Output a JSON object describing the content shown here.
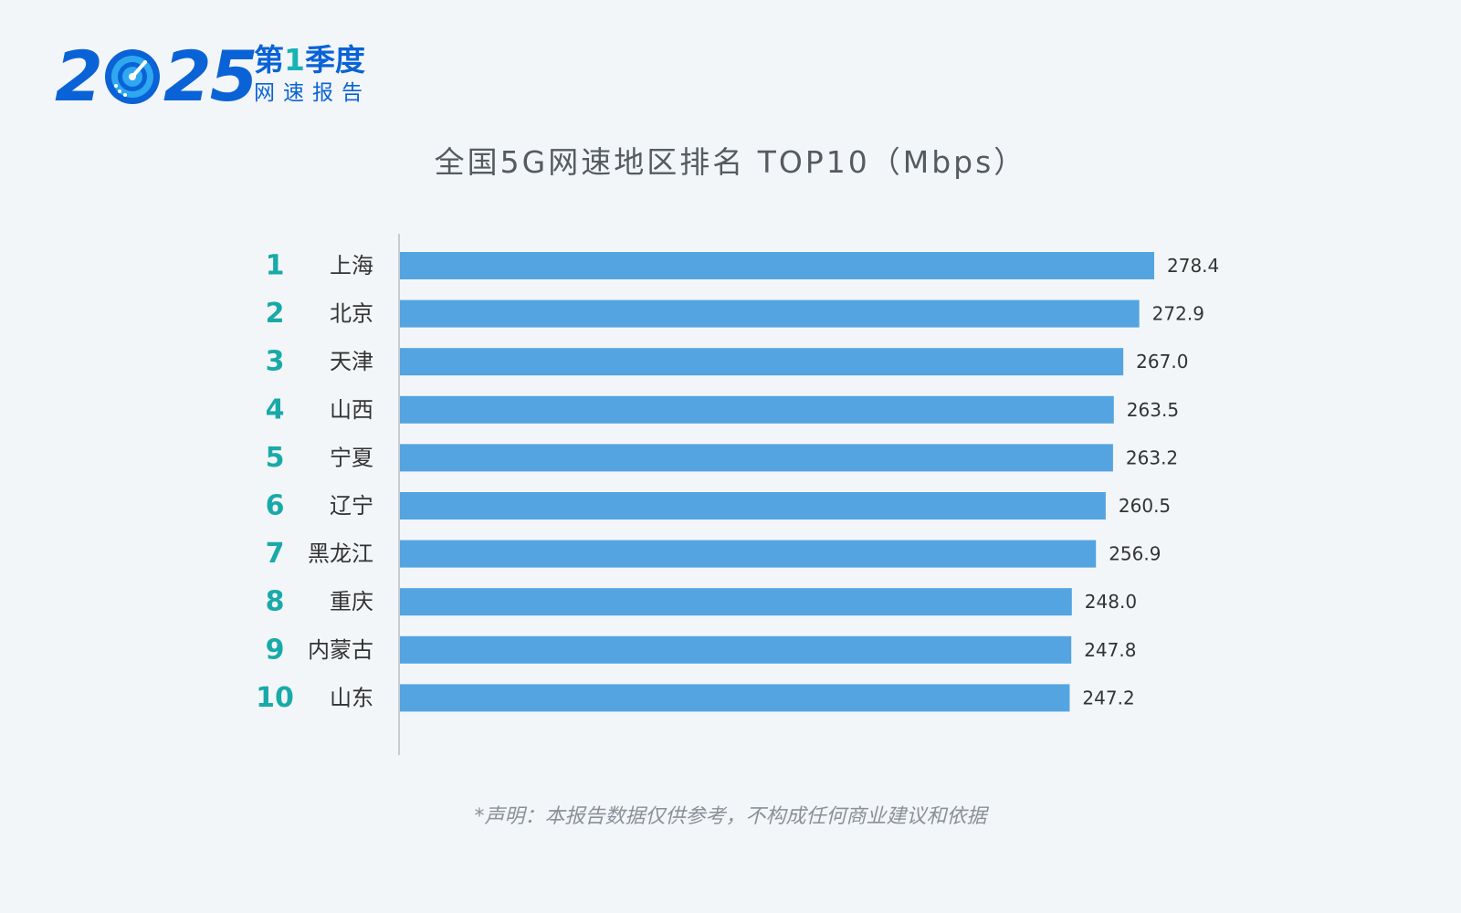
{
  "logo": {
    "year_digits": [
      "2",
      "0",
      "2",
      "5"
    ],
    "quarter_prefix": "第",
    "quarter_num": "1",
    "quarter_suffix": "季度",
    "report": "网速报告",
    "gauge_icon": "speedometer-icon",
    "colors": {
      "primary": "#0a63d6",
      "accent": "#19b3b3",
      "gauge_light": "#2fa8f0"
    }
  },
  "chart_data": {
    "type": "bar",
    "orientation": "horizontal",
    "title": "全国5G网速地区排名 TOP10（Mbps）",
    "ranks": [
      "1",
      "2",
      "3",
      "4",
      "5",
      "6",
      "7",
      "8",
      "9",
      "10"
    ],
    "categories": [
      "上海",
      "北京",
      "天津",
      "山西",
      "宁夏",
      "辽宁",
      "黑龙江",
      "重庆",
      "内蒙古",
      "山东"
    ],
    "values": [
      278.4,
      272.9,
      267.0,
      263.5,
      263.2,
      260.5,
      256.9,
      248.0,
      247.8,
      247.2
    ],
    "value_labels": [
      "278.4",
      "272.9",
      "267.0",
      "263.5",
      "263.2",
      "260.5",
      "256.9",
      "248.0",
      "247.8",
      "247.2"
    ],
    "xlim": [
      0,
      278.4
    ],
    "grid": false,
    "legend": "none",
    "colors": {
      "bar": "#53a4e1",
      "rank": "#19aaa8",
      "axis": "#c8cdd2"
    }
  },
  "footer": {
    "disclaimer": "*声明：本报告数据仅供参考，不构成任何商业建议和依据"
  }
}
